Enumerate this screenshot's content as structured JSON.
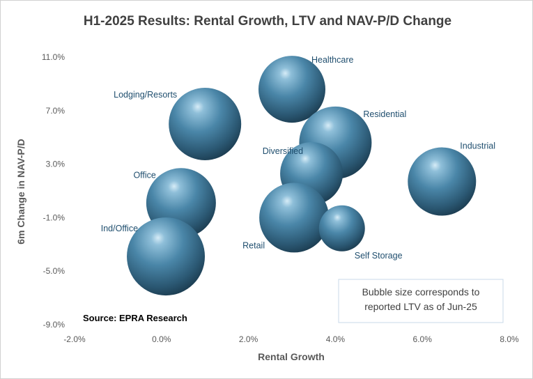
{
  "chart_data": {
    "type": "bubble",
    "title": "H1-2025 Results: Rental Growth, LTV and NAV-P/D Change",
    "xlabel": "Rental Growth",
    "ylabel": "6m Change in NAV-P/D",
    "xlim": [
      -0.02,
      0.08
    ],
    "ylim": [
      -0.09,
      0.11
    ],
    "x_ticks": [
      "-2.0%",
      "0.0%",
      "2.0%",
      "4.0%",
      "6.0%",
      "8.0%"
    ],
    "y_ticks": [
      "11.0%",
      "7.0%",
      "3.0%",
      "-1.0%",
      "-5.0%",
      "-9.0%"
    ],
    "grid": false,
    "bubble_color": "#3e7391",
    "series": [
      {
        "name": "Healthcare",
        "x": 0.03,
        "y": 0.086,
        "size": 48
      },
      {
        "name": "Lodging/Resorts",
        "x": 0.01,
        "y": 0.06,
        "size": 52
      },
      {
        "name": "Residential",
        "x": 0.04,
        "y": 0.046,
        "size": 52
      },
      {
        "name": "Industrial",
        "x": 0.0645,
        "y": 0.017,
        "size": 49
      },
      {
        "name": "Diversified",
        "x": 0.0345,
        "y": 0.023,
        "size": 45
      },
      {
        "name": "Office",
        "x": 0.0045,
        "y": 0.001,
        "size": 50
      },
      {
        "name": "Retail",
        "x": 0.0305,
        "y": -0.01,
        "size": 50
      },
      {
        "name": "Self Storage",
        "x": 0.0415,
        "y": -0.018,
        "size": 33
      },
      {
        "name": "Ind/Office",
        "x": 0.001,
        "y": -0.039,
        "size": 56
      }
    ],
    "source": "Source: EPRA Research",
    "annotation": "Bubble size corresponds to reported LTV as of Jun-25"
  }
}
